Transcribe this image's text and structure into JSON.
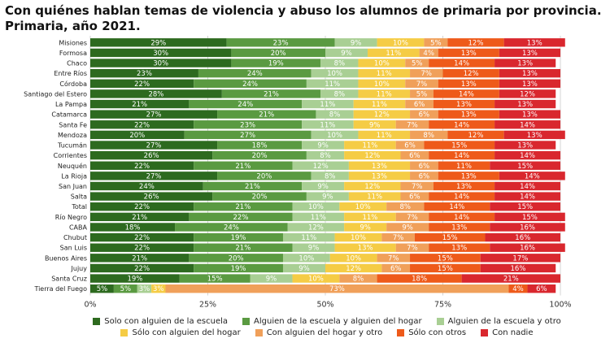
{
  "chart_data": {
    "type": "stacked-bar-horizontal-100",
    "title": "Con quiénes hablan temas de violencia y abuso los alumnos de primaria por provincia. Primaria, año 2021.",
    "categories": [
      "Misiones",
      "Formosa",
      "Chaco",
      "Entre Ríos",
      "Córdoba",
      "Santiago del Estero",
      "La Pampa",
      "Catamarca",
      "Santa Fe",
      "Mendoza",
      "Tucumán",
      "Corrientes",
      "Neuquén",
      "La Rioja",
      "San Juan",
      "Salta",
      "Total",
      "Río Negro",
      "CABA",
      "Chubut",
      "San Luis",
      "Buenos Aires",
      "Jujuy",
      "Santa Cruz",
      "Tierra del Fuego"
    ],
    "series": [
      {
        "name": "Solo con alguien de la escuela",
        "color": "#2d6a1f",
        "label_color": "#ffffff",
        "values": [
          29,
          30,
          30,
          23,
          22,
          28,
          21,
          27,
          22,
          20,
          27,
          26,
          22,
          27,
          24,
          26,
          22,
          21,
          18,
          22,
          22,
          21,
          22,
          19,
          5
        ]
      },
      {
        "name": "Alguien de la escuela y alguien del hogar",
        "color": "#5a9a41",
        "label_color": "#ffffff",
        "values": [
          23,
          20,
          19,
          24,
          24,
          21,
          24,
          21,
          23,
          27,
          18,
          20,
          21,
          20,
          21,
          20,
          21,
          22,
          24,
          19,
          21,
          20,
          19,
          15,
          5
        ]
      },
      {
        "name": "Alguien de la escuela  y otro",
        "color": "#a9cf94",
        "label_color": "#ffffff",
        "values": [
          9,
          9,
          8,
          10,
          11,
          8,
          11,
          8,
          11,
          10,
          9,
          8,
          12,
          8,
          9,
          9,
          10,
          11,
          12,
          11,
          9,
          10,
          9,
          9,
          3
        ]
      },
      {
        "name": "Sólo con alguien del hogar",
        "color": "#f5cc45",
        "label_color": "#ffffff",
        "values": [
          10,
          11,
          10,
          11,
          10,
          11,
          11,
          12,
          9,
          11,
          11,
          12,
          13,
          13,
          12,
          11,
          10,
          11,
          9,
          10,
          13,
          10,
          12,
          10,
          3
        ]
      },
      {
        "name": "Con alguien del hogar y otro",
        "color": "#f0a05a",
        "label_color": "#ffffff",
        "values": [
          5,
          4,
          5,
          7,
          7,
          5,
          6,
          6,
          7,
          8,
          6,
          6,
          6,
          6,
          7,
          6,
          8,
          7,
          9,
          7,
          7,
          7,
          6,
          8,
          73
        ]
      },
      {
        "name": "Sólo con otros",
        "color": "#ee5a1a",
        "label_color": "#ffffff",
        "values": [
          12,
          13,
          14,
          12,
          13,
          14,
          13,
          13,
          14,
          12,
          15,
          14,
          11,
          13,
          13,
          14,
          14,
          14,
          13,
          15,
          13,
          15,
          15,
          18,
          4
        ]
      },
      {
        "name": "Con nadie",
        "color": "#d9272e",
        "label_color": "#ffffff",
        "values": [
          13,
          13,
          13,
          13,
          13,
          12,
          13,
          13,
          14,
          13,
          13,
          14,
          15,
          14,
          14,
          14,
          15,
          15,
          16,
          16,
          16,
          17,
          16,
          21,
          6
        ]
      }
    ],
    "x_ticks": [
      "0%",
      "25%",
      "50%",
      "75%",
      "100%"
    ],
    "xlim": [
      0,
      100
    ],
    "value_suffix": "%",
    "grid": true,
    "legend_position": "bottom"
  }
}
